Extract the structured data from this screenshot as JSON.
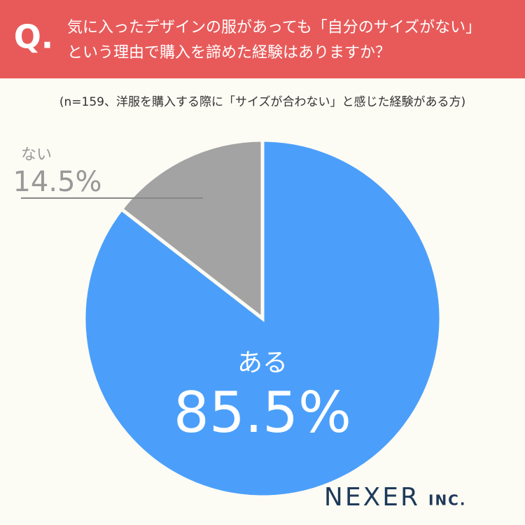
{
  "header": {
    "mark": "Q."
  },
  "chart_data": {
    "type": "pie",
    "title": [
      "気に入ったデザインの服があっても「自分のサイズがない」",
      "という理由で購入を諦めた経験はありますか？"
    ],
    "subtitle": "(n=159、洋服を購入する際に「サイズが合わない」と感じた経験がある方)",
    "categories": [
      "ある",
      "ない"
    ],
    "values": [
      85.5,
      14.5
    ],
    "value_labels": [
      "85.5%",
      "14.5%"
    ],
    "colors": [
      "#4b9ffa",
      "#a3a3a3"
    ]
  },
  "footer": {
    "brand": "NEXER",
    "suffix": "INC."
  }
}
